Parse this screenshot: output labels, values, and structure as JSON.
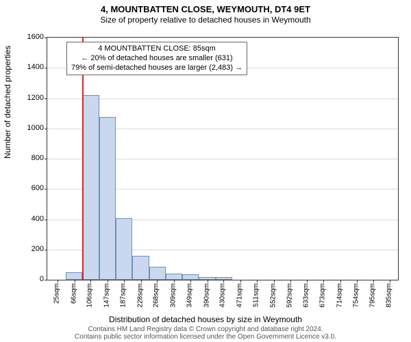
{
  "title_line1": "4, MOUNTBATTEN CLOSE, WEYMOUTH, DT4 9ET",
  "title_line2": "Size of property relative to detached houses in Weymouth",
  "chart": {
    "type": "histogram",
    "xlabel": "Distribution of detached houses by size in Weymouth",
    "ylabel": "Number of detached properties",
    "ylim": [
      0,
      1600
    ],
    "ytick_step": 200,
    "x_tick_values": [
      25,
      66,
      106,
      147,
      187,
      228,
      268,
      309,
      349,
      390,
      430,
      471,
      511,
      552,
      592,
      633,
      673,
      714,
      754,
      795,
      835
    ],
    "x_tick_unit": "sqm",
    "x_domain": [
      0,
      855
    ],
    "bars": [
      {
        "x": 45.5,
        "w": 40.5,
        "v": 50
      },
      {
        "x": 86,
        "w": 40.5,
        "v": 1220
      },
      {
        "x": 126.5,
        "w": 40.5,
        "v": 1075
      },
      {
        "x": 167,
        "w": 40.5,
        "v": 405
      },
      {
        "x": 207.5,
        "w": 40.5,
        "v": 160
      },
      {
        "x": 248,
        "w": 40.5,
        "v": 85
      },
      {
        "x": 288.5,
        "w": 40.5,
        "v": 40
      },
      {
        "x": 329,
        "w": 40.5,
        "v": 35
      },
      {
        "x": 369.5,
        "w": 40.5,
        "v": 20
      },
      {
        "x": 410,
        "w": 40.5,
        "v": 18
      }
    ],
    "reference_line_x": 85,
    "bar_fill": "#c9d8ee",
    "bar_stroke": "#6b8fbf",
    "refline_color": "#d62728",
    "grid_color": "#d9d9d9",
    "background_color": "#ffffff"
  },
  "annotation": {
    "line1": "4 MOUNTBATTEN CLOSE: 85sqm",
    "line2": "← 20% of detached houses are smaller (631)",
    "line3": "79% of semi-detached houses are larger (2,483) →"
  },
  "footer": {
    "line1": "Contains HM Land Registry data © Crown copyright and database right 2024.",
    "line2": "Contains public sector information licensed under the Open Government Licence v3.0."
  }
}
